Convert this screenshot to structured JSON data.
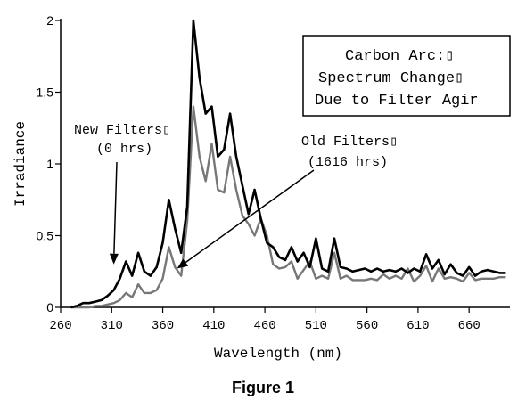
{
  "figure_caption": "Figure 1",
  "chart_data": {
    "type": "line",
    "title_box": {
      "lines": [
        "Carbon Arc:▯",
        "Spectrum Change▯",
        "Due to Filter Agir"
      ]
    },
    "xlabel": "Wavelength (nm)",
    "ylabel": "Irradiance",
    "xlim": [
      260,
      700
    ],
    "ylim": [
      0,
      2
    ],
    "xticks": [
      260,
      310,
      360,
      410,
      460,
      510,
      560,
      610,
      660
    ],
    "yticks": [
      0,
      0.5,
      1,
      1.5,
      2
    ],
    "ytick_labels": [
      "0",
      "0.5",
      "1",
      "1.5",
      "2"
    ],
    "grid": false,
    "colors": {
      "new": "#000000",
      "old": "#777777"
    },
    "annotations": [
      {
        "id": "new",
        "lines": [
          "New Filters▯",
          "(0 hrs)"
        ],
        "arrow_tip": [
          312,
          0.3
        ]
      },
      {
        "id": "old",
        "lines": [
          "Old Filters▯",
          "(1616 hrs)"
        ],
        "arrow_tip": [
          374,
          0.27
        ]
      }
    ],
    "series": [
      {
        "id": "new",
        "x": [
          270,
          276,
          282,
          288,
          294,
          300,
          306,
          312,
          318,
          324,
          330,
          336,
          342,
          348,
          354,
          360,
          366,
          372,
          378,
          384,
          390,
          396,
          402,
          408,
          414,
          420,
          426,
          432,
          438,
          444,
          450,
          456,
          462,
          468,
          474,
          480,
          486,
          492,
          498,
          504,
          510,
          516,
          522,
          528,
          534,
          540,
          546,
          552,
          558,
          564,
          570,
          576,
          582,
          588,
          594,
          600,
          606,
          612,
          618,
          624,
          630,
          636,
          642,
          648,
          654,
          660,
          666,
          672,
          678,
          684,
          690,
          696
        ],
        "y": [
          0.0,
          0.01,
          0.03,
          0.03,
          0.04,
          0.05,
          0.08,
          0.12,
          0.2,
          0.32,
          0.22,
          0.38,
          0.25,
          0.22,
          0.28,
          0.45,
          0.75,
          0.55,
          0.38,
          0.7,
          2.0,
          1.6,
          1.35,
          1.4,
          1.05,
          1.1,
          1.35,
          1.05,
          0.85,
          0.65,
          0.82,
          0.62,
          0.45,
          0.42,
          0.35,
          0.33,
          0.42,
          0.32,
          0.38,
          0.28,
          0.48,
          0.27,
          0.25,
          0.48,
          0.28,
          0.27,
          0.25,
          0.26,
          0.27,
          0.25,
          0.27,
          0.25,
          0.26,
          0.25,
          0.27,
          0.24,
          0.27,
          0.25,
          0.37,
          0.27,
          0.33,
          0.23,
          0.3,
          0.24,
          0.22,
          0.28,
          0.22,
          0.25,
          0.26,
          0.25,
          0.24,
          0.24
        ]
      },
      {
        "id": "old",
        "x": [
          270,
          276,
          282,
          288,
          294,
          300,
          306,
          312,
          318,
          324,
          330,
          336,
          342,
          348,
          354,
          360,
          366,
          372,
          378,
          384,
          390,
          396,
          402,
          408,
          414,
          420,
          426,
          432,
          438,
          444,
          450,
          456,
          462,
          468,
          474,
          480,
          486,
          492,
          498,
          504,
          510,
          516,
          522,
          528,
          534,
          540,
          546,
          552,
          558,
          564,
          570,
          576,
          582,
          588,
          594,
          600,
          606,
          612,
          618,
          624,
          630,
          636,
          642,
          648,
          654,
          660,
          666,
          672,
          678,
          684,
          690,
          696
        ],
        "y": [
          0.0,
          0.0,
          0.0,
          0.0,
          0.01,
          0.01,
          0.02,
          0.03,
          0.05,
          0.1,
          0.07,
          0.16,
          0.1,
          0.1,
          0.12,
          0.2,
          0.42,
          0.28,
          0.22,
          0.6,
          1.4,
          1.05,
          0.88,
          1.14,
          0.82,
          0.8,
          1.05,
          0.82,
          0.64,
          0.58,
          0.5,
          0.62,
          0.5,
          0.3,
          0.27,
          0.28,
          0.32,
          0.2,
          0.26,
          0.32,
          0.2,
          0.22,
          0.2,
          0.38,
          0.2,
          0.22,
          0.19,
          0.19,
          0.19,
          0.2,
          0.19,
          0.23,
          0.2,
          0.22,
          0.2,
          0.27,
          0.18,
          0.22,
          0.29,
          0.18,
          0.27,
          0.2,
          0.21,
          0.2,
          0.18,
          0.24,
          0.19,
          0.2,
          0.2,
          0.2,
          0.21,
          0.21
        ]
      }
    ]
  }
}
